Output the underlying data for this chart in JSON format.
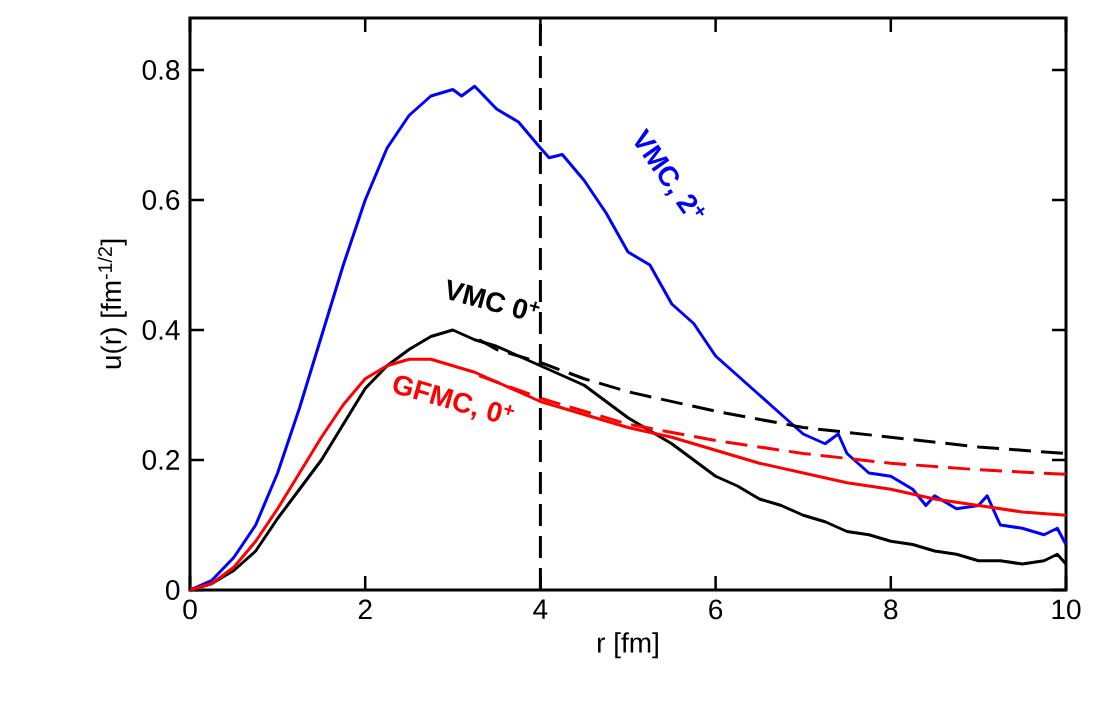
{
  "chart_data": {
    "type": "line",
    "xlabel": "r [fm]",
    "ylabel": "u(r) [fm$^{-1/2}$]",
    "xlim": [
      0,
      10
    ],
    "ylim": [
      0,
      0.88
    ],
    "xticks": [
      0,
      2,
      4,
      6,
      8,
      10
    ],
    "yticks": [
      0,
      0.2,
      0.4,
      0.6,
      0.8
    ],
    "ref_lines": [
      {
        "axis": "x",
        "value": 4,
        "color": "#000000",
        "line_style": "dashed"
      }
    ],
    "series": [
      {
        "name": "VMC, 2$^{+}$",
        "color": "#0000ff",
        "line_style": "solid",
        "x": [
          0,
          0.25,
          0.5,
          0.75,
          1.0,
          1.25,
          1.5,
          1.75,
          2.0,
          2.25,
          2.5,
          2.75,
          3.0,
          3.1,
          3.25,
          3.5,
          3.75,
          4.0,
          4.1,
          4.25,
          4.5,
          4.75,
          5.0,
          5.25,
          5.5,
          5.75,
          6.0,
          6.25,
          6.5,
          6.75,
          7.0,
          7.25,
          7.4,
          7.5,
          7.75,
          8.0,
          8.25,
          8.4,
          8.5,
          8.75,
          9.0,
          9.1,
          9.25,
          9.5,
          9.75,
          9.9,
          10
        ],
        "values": [
          0,
          0.015,
          0.05,
          0.1,
          0.18,
          0.28,
          0.39,
          0.5,
          0.6,
          0.68,
          0.73,
          0.76,
          0.77,
          0.76,
          0.775,
          0.74,
          0.72,
          0.68,
          0.665,
          0.67,
          0.63,
          0.58,
          0.52,
          0.5,
          0.44,
          0.41,
          0.36,
          0.33,
          0.3,
          0.27,
          0.24,
          0.225,
          0.24,
          0.21,
          0.18,
          0.175,
          0.155,
          0.13,
          0.145,
          0.125,
          0.13,
          0.145,
          0.1,
          0.095,
          0.085,
          0.095,
          0.07
        ]
      },
      {
        "name": "VMC 0$^{+}$",
        "color": "#000000",
        "line_style": "solid",
        "x": [
          0,
          0.25,
          0.5,
          0.75,
          1.0,
          1.25,
          1.5,
          1.75,
          2.0,
          2.25,
          2.5,
          2.75,
          3.0,
          3.25,
          3.5,
          3.75,
          4.0,
          4.25,
          4.5,
          4.75,
          5.0,
          5.25,
          5.5,
          5.75,
          6.0,
          6.25,
          6.5,
          6.75,
          7.0,
          7.25,
          7.5,
          7.75,
          8.0,
          8.25,
          8.5,
          8.75,
          9.0,
          9.25,
          9.5,
          9.75,
          9.9,
          10
        ],
        "values": [
          0,
          0.01,
          0.03,
          0.06,
          0.11,
          0.155,
          0.2,
          0.255,
          0.31,
          0.345,
          0.37,
          0.39,
          0.4,
          0.385,
          0.375,
          0.36,
          0.345,
          0.33,
          0.315,
          0.29,
          0.265,
          0.245,
          0.225,
          0.2,
          0.175,
          0.16,
          0.14,
          0.13,
          0.115,
          0.105,
          0.09,
          0.085,
          0.075,
          0.07,
          0.06,
          0.055,
          0.045,
          0.045,
          0.04,
          0.045,
          0.055,
          0.04
        ]
      },
      {
        "name": "GFMC, 0$^{+}$",
        "color": "#ff0000",
        "line_style": "solid",
        "x": [
          0,
          0.25,
          0.5,
          0.75,
          1.0,
          1.25,
          1.5,
          1.75,
          2.0,
          2.25,
          2.5,
          2.75,
          3.0,
          3.25,
          3.5,
          3.75,
          4.0,
          4.5,
          5.0,
          5.5,
          6.0,
          6.5,
          7.0,
          7.5,
          8.0,
          8.5,
          9.0,
          9.5,
          10
        ],
        "values": [
          0,
          0.01,
          0.035,
          0.075,
          0.125,
          0.18,
          0.235,
          0.285,
          0.325,
          0.345,
          0.355,
          0.355,
          0.345,
          0.335,
          0.32,
          0.305,
          0.29,
          0.27,
          0.25,
          0.235,
          0.215,
          0.195,
          0.18,
          0.165,
          0.155,
          0.14,
          0.13,
          0.12,
          0.115
        ]
      },
      {
        "color": "#000000",
        "line_style": "dashed",
        "x": [
          3.3,
          3.5,
          4.0,
          4.5,
          5.0,
          5.5,
          6.0,
          7.0,
          8.0,
          9.0,
          10
        ],
        "values": [
          0.385,
          0.37,
          0.35,
          0.325,
          0.305,
          0.29,
          0.275,
          0.25,
          0.235,
          0.22,
          0.21
        ]
      },
      {
        "color": "#ff0000",
        "line_style": "dashed",
        "x": [
          3.3,
          3.5,
          4.0,
          5.0,
          6.0,
          7.0,
          8.0,
          9.0,
          10
        ],
        "values": [
          0.33,
          0.32,
          0.295,
          0.255,
          0.23,
          0.21,
          0.195,
          0.185,
          0.178
        ]
      }
    ]
  }
}
